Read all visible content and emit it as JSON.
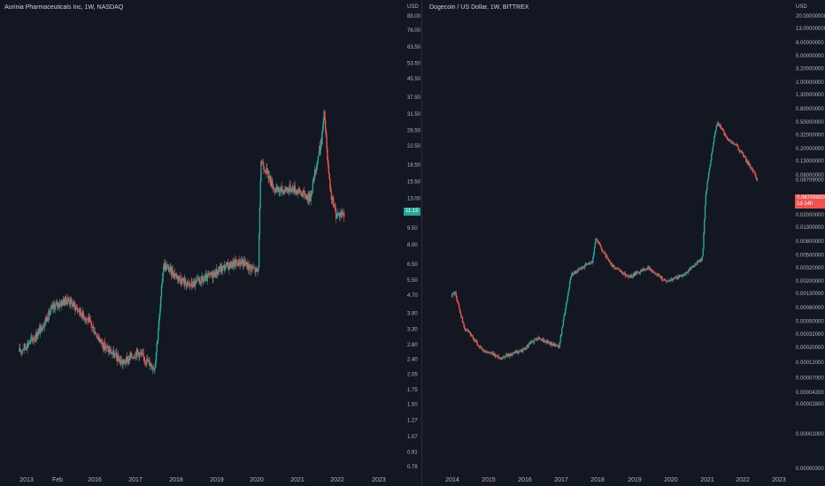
{
  "colors": {
    "background": "#131722",
    "up": "#26a69a",
    "down": "#ef5350",
    "text": "#b2b5be"
  },
  "left_chart": {
    "title": "Aurinia Pharmaceuticals Inc, 1W, NASDAQ",
    "currency": "USD",
    "last_price": "11.15"
  },
  "right_chart": {
    "title": "Dogecoin / US Dollar, 1W, BITTREX",
    "currency": "USD",
    "last_price": "0.06709000",
    "countdown": "1d 14h"
  },
  "chart_data": [
    {
      "type": "candlestick",
      "title": "Aurinia Pharmaceuticals Inc, 1W, NASDAQ",
      "y_scale": "log",
      "y_ticks": [
        "88.00",
        "76.00",
        "63.50",
        "53.50",
        "45.50",
        "37.50",
        "31.50",
        "26.50",
        "22.50",
        "18.50",
        "15.50",
        "13.00",
        "11.15",
        "9.50",
        "8.00",
        "6.50",
        "5.50",
        "4.70",
        "3.90",
        "3.30",
        "2.80",
        "2.40",
        "2.05",
        "1.75",
        "1.50",
        "1.27",
        "1.07",
        "0.91",
        "0.78"
      ],
      "x_ticks": [
        "2013",
        "Feb",
        "2016",
        "2017",
        "2018",
        "2019",
        "2020",
        "2021",
        "2022",
        "2023"
      ],
      "series": [
        {
          "x": "2013-01",
          "y": 2.6
        },
        {
          "x": "2013-07",
          "y": 3.1
        },
        {
          "x": "2014-01",
          "y": 4.2
        },
        {
          "x": "2014-06",
          "y": 4.5
        },
        {
          "x": "2015-01",
          "y": 3.6
        },
        {
          "x": "2015-06",
          "y": 2.8
        },
        {
          "x": "2016-01",
          "y": 2.3
        },
        {
          "x": "2016-06",
          "y": 2.6
        },
        {
          "x": "2016-12",
          "y": 2.2
        },
        {
          "x": "2017-02",
          "y": 4.2
        },
        {
          "x": "2017-03",
          "y": 6.5
        },
        {
          "x": "2017-06",
          "y": 6.0
        },
        {
          "x": "2017-12",
          "y": 5.2
        },
        {
          "x": "2018-06",
          "y": 5.6
        },
        {
          "x": "2018-12",
          "y": 6.3
        },
        {
          "x": "2019-06",
          "y": 6.7
        },
        {
          "x": "2019-12",
          "y": 6.0
        },
        {
          "x": "2020-01",
          "y": 19.5
        },
        {
          "x": "2020-06",
          "y": 14.0
        },
        {
          "x": "2020-12",
          "y": 14.5
        },
        {
          "x": "2021-06",
          "y": 13.0
        },
        {
          "x": "2021-10",
          "y": 24.0
        },
        {
          "x": "2021-11",
          "y": 32.0
        },
        {
          "x": "2021-12",
          "y": 20.0
        },
        {
          "x": "2022-01",
          "y": 14.0
        },
        {
          "x": "2022-03",
          "y": 11.0
        },
        {
          "x": "2022-06",
          "y": 11.15
        }
      ]
    },
    {
      "type": "candlestick",
      "title": "Dogecoin / US Dollar, 1W, BITTREX",
      "y_scale": "log",
      "y_ticks": [
        "20.00000000",
        "13.00000000",
        "8.00000000",
        "5.00000000",
        "3.20000000",
        "2.00000000",
        "1.30000000",
        "0.80000000",
        "0.50000000",
        "0.32000000",
        "0.20000000",
        "0.13000000",
        "0.08000000",
        "0.06709000",
        "0.03200000",
        "0.02000000",
        "0.01300000",
        "0.00800000",
        "0.00500000",
        "0.00320000",
        "0.00200000",
        "0.00130000",
        "0.00080000",
        "0.00050000",
        "0.00032000",
        "0.00020000",
        "0.00012000",
        "0.00007000",
        "0.00004200",
        "0.00002800",
        "0.00001000",
        "0.00000300"
      ],
      "x_ticks": [
        "2014",
        "2015",
        "2016",
        "2017",
        "2018",
        "2019",
        "2020",
        "2021",
        "2022",
        "2023"
      ],
      "series": [
        {
          "x": "2014-02",
          "y": 0.0012
        },
        {
          "x": "2014-03",
          "y": 0.0014
        },
        {
          "x": "2014-06",
          "y": 0.0004
        },
        {
          "x": "2014-12",
          "y": 0.00018
        },
        {
          "x": "2015-06",
          "y": 0.00014
        },
        {
          "x": "2016-01",
          "y": 0.00018
        },
        {
          "x": "2016-06",
          "y": 0.00028
        },
        {
          "x": "2017-01",
          "y": 0.0002
        },
        {
          "x": "2017-05",
          "y": 0.0025
        },
        {
          "x": "2017-12",
          "y": 0.004
        },
        {
          "x": "2018-01",
          "y": 0.009
        },
        {
          "x": "2018-06",
          "y": 0.0035
        },
        {
          "x": "2018-12",
          "y": 0.0023
        },
        {
          "x": "2019-06",
          "y": 0.0032
        },
        {
          "x": "2019-12",
          "y": 0.002
        },
        {
          "x": "2020-06",
          "y": 0.0025
        },
        {
          "x": "2020-12",
          "y": 0.0045
        },
        {
          "x": "2021-01",
          "y": 0.04
        },
        {
          "x": "2021-04",
          "y": 0.35
        },
        {
          "x": "2021-05",
          "y": 0.5
        },
        {
          "x": "2021-08",
          "y": 0.28
        },
        {
          "x": "2021-11",
          "y": 0.22
        },
        {
          "x": "2022-03",
          "y": 0.12
        },
        {
          "x": "2022-06",
          "y": 0.06709
        }
      ]
    }
  ]
}
